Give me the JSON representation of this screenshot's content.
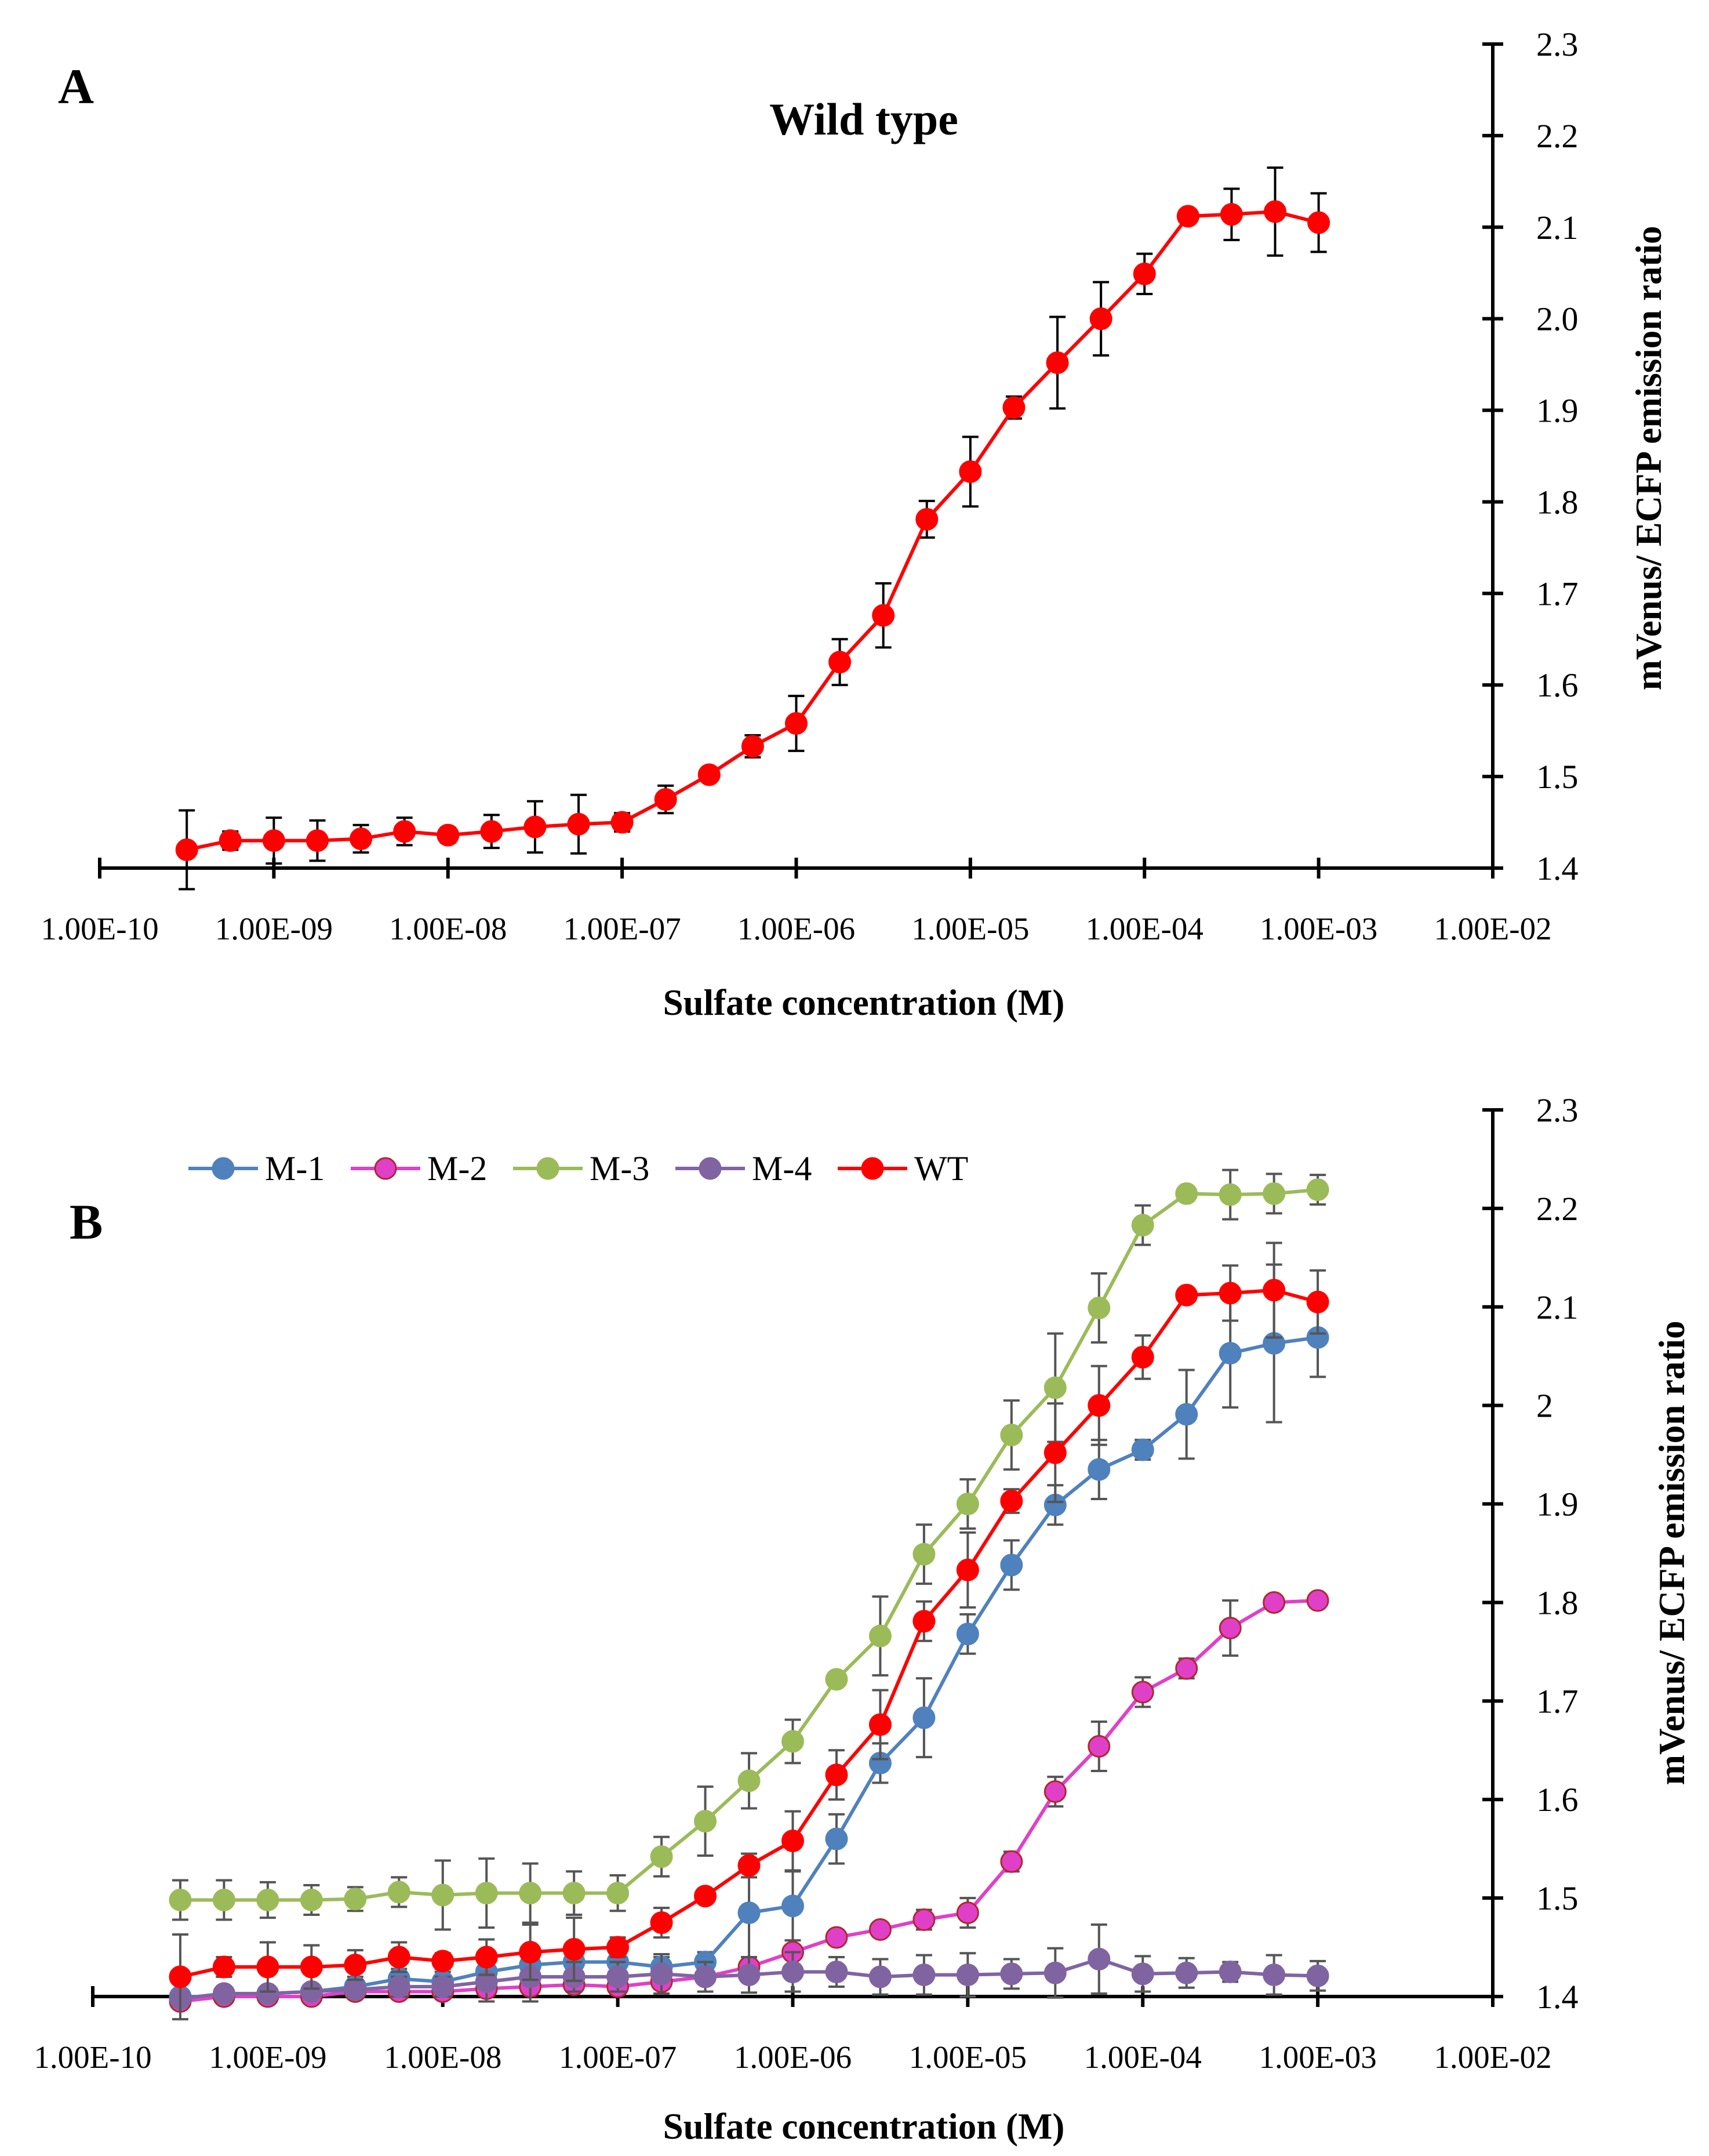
{
  "chart_data": [
    {
      "panel": "A",
      "type": "line",
      "title": "Wild type",
      "xlabel": "Sulfate concentration (M)",
      "ylabel": "mVenus/ ECFP emission ratio",
      "xscale": "log",
      "xlim_exponent": [
        -10,
        -2
      ],
      "x_tick_labels": [
        "1.00E-10",
        "1.00E-09",
        "1.00E-08",
        "1.00E-07",
        "1.00E-06",
        "1.00E-05",
        "1.00E-04",
        "1.00E-03",
        "1.00E-02"
      ],
      "ylim": [
        1.4,
        2.3
      ],
      "y_tick_labels": [
        "1.4",
        "1.5",
        "1.6",
        "1.7",
        "1.8",
        "1.9",
        "2.0",
        "2.1",
        "2.2",
        "2.3"
      ],
      "legend": false,
      "series": [
        {
          "name": "WT",
          "color": "#ff0000",
          "marker_edge": "#ff0000",
          "x_exponent": [
            -9.5,
            -9.25,
            -9.0,
            -8.75,
            -8.5,
            -8.25,
            -8.0,
            -7.75,
            -7.5,
            -7.25,
            -7.0,
            -6.75,
            -6.5,
            -6.25,
            -6.0,
            -5.75,
            -5.5,
            -5.25,
            -5.0,
            -4.75,
            -4.5,
            -4.25,
            -4.0,
            -3.75,
            -3.5,
            -3.25,
            -3.0
          ],
          "values": [
            1.42,
            1.43,
            1.43,
            1.43,
            1.432,
            1.44,
            1.436,
            1.44,
            1.445,
            1.448,
            1.45,
            1.475,
            1.502,
            1.533,
            1.558,
            1.625,
            1.676,
            1.781,
            1.833,
            1.903,
            1.952,
            2.0,
            2.049,
            2.112,
            2.114,
            2.117,
            2.105
          ],
          "errors": [
            0.043,
            0.01,
            0.025,
            0.022,
            0.015,
            0.015,
            0.008,
            0.018,
            0.028,
            0.032,
            0.01,
            0.015,
            0.005,
            0.012,
            0.03,
            0.025,
            0.035,
            0.02,
            0.038,
            0.012,
            0.05,
            0.04,
            0.022,
            0.005,
            0.028,
            0.048,
            0.032
          ]
        }
      ]
    },
    {
      "panel": "B",
      "type": "line",
      "title": "",
      "xlabel": "Sulfate concentration (M)",
      "ylabel": "mVenus/ ECFP emission ratio",
      "xscale": "log",
      "xlim_exponent": [
        -10,
        -2
      ],
      "x_tick_labels": [
        "1.00E-10",
        "1.00E-09",
        "1.00E-08",
        "1.00E-07",
        "1.00E-06",
        "1.00E-05",
        "1.00E-04",
        "1.00E-03",
        "1.00E-02"
      ],
      "ylim": [
        1.4,
        2.3
      ],
      "y_tick_labels": [
        "1.4",
        "1.5",
        "1.6",
        "1.7",
        "1.8",
        "1.9",
        "2",
        "2.1",
        "2.2",
        "2.3"
      ],
      "legend": "top",
      "series": [
        {
          "name": "M-1",
          "color": "#4f81bd",
          "marker_edge": "#4f81bd",
          "x_exponent": [
            -9.5,
            -9.25,
            -9.0,
            -8.75,
            -8.5,
            -8.25,
            -8.0,
            -7.75,
            -7.5,
            -7.25,
            -7.0,
            -6.75,
            -6.5,
            -6.25,
            -6.0,
            -5.75,
            -5.5,
            -5.25,
            -5.0,
            -4.75,
            -4.5,
            -4.25,
            -4.0,
            -3.75,
            -3.5,
            -3.25,
            -3.0
          ],
          "values": [
            1.4,
            1.4,
            1.403,
            1.405,
            1.41,
            1.418,
            1.415,
            1.425,
            1.432,
            1.435,
            1.435,
            1.43,
            1.435,
            1.485,
            1.492,
            1.56,
            1.637,
            1.683,
            1.768,
            1.838,
            1.899,
            1.935,
            1.955,
            1.991,
            2.053,
            2.063,
            2.069
          ],
          "errors": [
            0.005,
            0.005,
            0.005,
            0.005,
            0.01,
            0.01,
            0.01,
            0.02,
            0.015,
            0.015,
            0.015,
            0.01,
            0.01,
            0.05,
            0.035,
            0.025,
            0.02,
            0.04,
            0.02,
            0.025,
            0.02,
            0.03,
            0.01,
            0.045,
            0.055,
            0.08,
            0.04
          ]
        },
        {
          "name": "M-2",
          "color": "#e040c8",
          "marker_edge": "#b0282e",
          "x_exponent": [
            -9.5,
            -9.25,
            -9.0,
            -8.75,
            -8.5,
            -8.25,
            -8.0,
            -7.75,
            -7.5,
            -7.25,
            -7.0,
            -6.75,
            -6.5,
            -6.25,
            -6.0,
            -5.75,
            -5.5,
            -5.25,
            -5.0,
            -4.75,
            -4.5,
            -4.25,
            -4.0,
            -3.75,
            -3.5,
            -3.25,
            -3.0
          ],
          "values": [
            1.395,
            1.4,
            1.4,
            1.4,
            1.405,
            1.405,
            1.405,
            1.408,
            1.41,
            1.412,
            1.41,
            1.415,
            1.42,
            1.43,
            1.445,
            1.46,
            1.468,
            1.478,
            1.485,
            1.537,
            1.608,
            1.654,
            1.709,
            1.733,
            1.774,
            1.8,
            1.802
          ],
          "errors": [
            0.005,
            0.005,
            0.005,
            0.005,
            0.005,
            0.005,
            0.005,
            0.005,
            0.005,
            0.005,
            0.005,
            0.005,
            0.005,
            0.005,
            0.005,
            0.005,
            0.005,
            0.01,
            0.015,
            0.01,
            0.015,
            0.025,
            0.015,
            0.01,
            0.028,
            0.005,
            0.005
          ]
        },
        {
          "name": "M-3",
          "color": "#9bbb59",
          "marker_edge": "#9bbb59",
          "x_exponent": [
            -9.5,
            -9.25,
            -9.0,
            -8.75,
            -8.5,
            -8.25,
            -8.0,
            -7.75,
            -7.5,
            -7.25,
            -7.0,
            -6.75,
            -6.5,
            -6.25,
            -6.0,
            -5.75,
            -5.5,
            -5.25,
            -5.0,
            -4.75,
            -4.5,
            -4.25,
            -4.0,
            -3.75,
            -3.5,
            -3.25,
            -3.0
          ],
          "values": [
            1.498,
            1.498,
            1.498,
            1.498,
            1.499,
            1.506,
            1.503,
            1.505,
            1.505,
            1.505,
            1.505,
            1.542,
            1.578,
            1.619,
            1.659,
            1.722,
            1.766,
            1.849,
            1.9,
            1.97,
            2.018,
            2.099,
            2.183,
            2.215,
            2.214,
            2.215,
            2.219
          ],
          "errors": [
            0.02,
            0.02,
            0.018,
            0.015,
            0.012,
            0.015,
            0.035,
            0.035,
            0.03,
            0.022,
            0.018,
            0.02,
            0.035,
            0.028,
            0.022,
            0.005,
            0.04,
            0.03,
            0.025,
            0.035,
            0.055,
            0.035,
            0.02,
            0.005,
            0.025,
            0.02,
            0.015
          ]
        },
        {
          "name": "M-4",
          "color": "#8064a2",
          "marker_edge": "#8064a2",
          "x_exponent": [
            -9.5,
            -9.25,
            -9.0,
            -8.75,
            -8.5,
            -8.25,
            -8.0,
            -7.75,
            -7.5,
            -7.25,
            -7.0,
            -6.75,
            -6.5,
            -6.25,
            -6.0,
            -5.75,
            -5.5,
            -5.25,
            -5.0,
            -4.75,
            -4.5,
            -4.25,
            -4.0,
            -3.75,
            -3.5,
            -3.25,
            -3.0
          ],
          "values": [
            1.398,
            1.403,
            1.403,
            1.405,
            1.407,
            1.41,
            1.41,
            1.415,
            1.42,
            1.42,
            1.42,
            1.423,
            1.42,
            1.422,
            1.425,
            1.425,
            1.42,
            1.422,
            1.422,
            1.423,
            1.424,
            1.438,
            1.423,
            1.424,
            1.425,
            1.422,
            1.421
          ],
          "errors": [
            0.005,
            0.005,
            0.005,
            0.005,
            0.005,
            0.01,
            0.01,
            0.02,
            0.025,
            0.015,
            0.015,
            0.02,
            0.015,
            0.018,
            0.02,
            0.015,
            0.018,
            0.02,
            0.022,
            0.015,
            0.025,
            0.035,
            0.018,
            0.015,
            0.01,
            0.02,
            0.015
          ]
        },
        {
          "name": "WT",
          "color": "#ff0000",
          "marker_edge": "#ff0000",
          "x_exponent": [
            -9.5,
            -9.25,
            -9.0,
            -8.75,
            -8.5,
            -8.25,
            -8.0,
            -7.75,
            -7.5,
            -7.25,
            -7.0,
            -6.75,
            -6.5,
            -6.25,
            -6.0,
            -5.75,
            -5.5,
            -5.25,
            -5.0,
            -4.75,
            -4.5,
            -4.25,
            -4.0,
            -3.75,
            -3.5,
            -3.25,
            -3.0
          ],
          "values": [
            1.42,
            1.43,
            1.43,
            1.43,
            1.432,
            1.44,
            1.436,
            1.44,
            1.445,
            1.448,
            1.45,
            1.475,
            1.502,
            1.533,
            1.558,
            1.625,
            1.676,
            1.781,
            1.833,
            1.903,
            1.952,
            2.0,
            2.049,
            2.112,
            2.114,
            2.117,
            2.105
          ],
          "errors": [
            0.043,
            0.01,
            0.025,
            0.022,
            0.015,
            0.015,
            0.008,
            0.018,
            0.028,
            0.032,
            0.01,
            0.015,
            0.005,
            0.012,
            0.03,
            0.025,
            0.035,
            0.02,
            0.038,
            0.012,
            0.05,
            0.04,
            0.022,
            0.005,
            0.028,
            0.048,
            0.032
          ]
        }
      ]
    }
  ]
}
